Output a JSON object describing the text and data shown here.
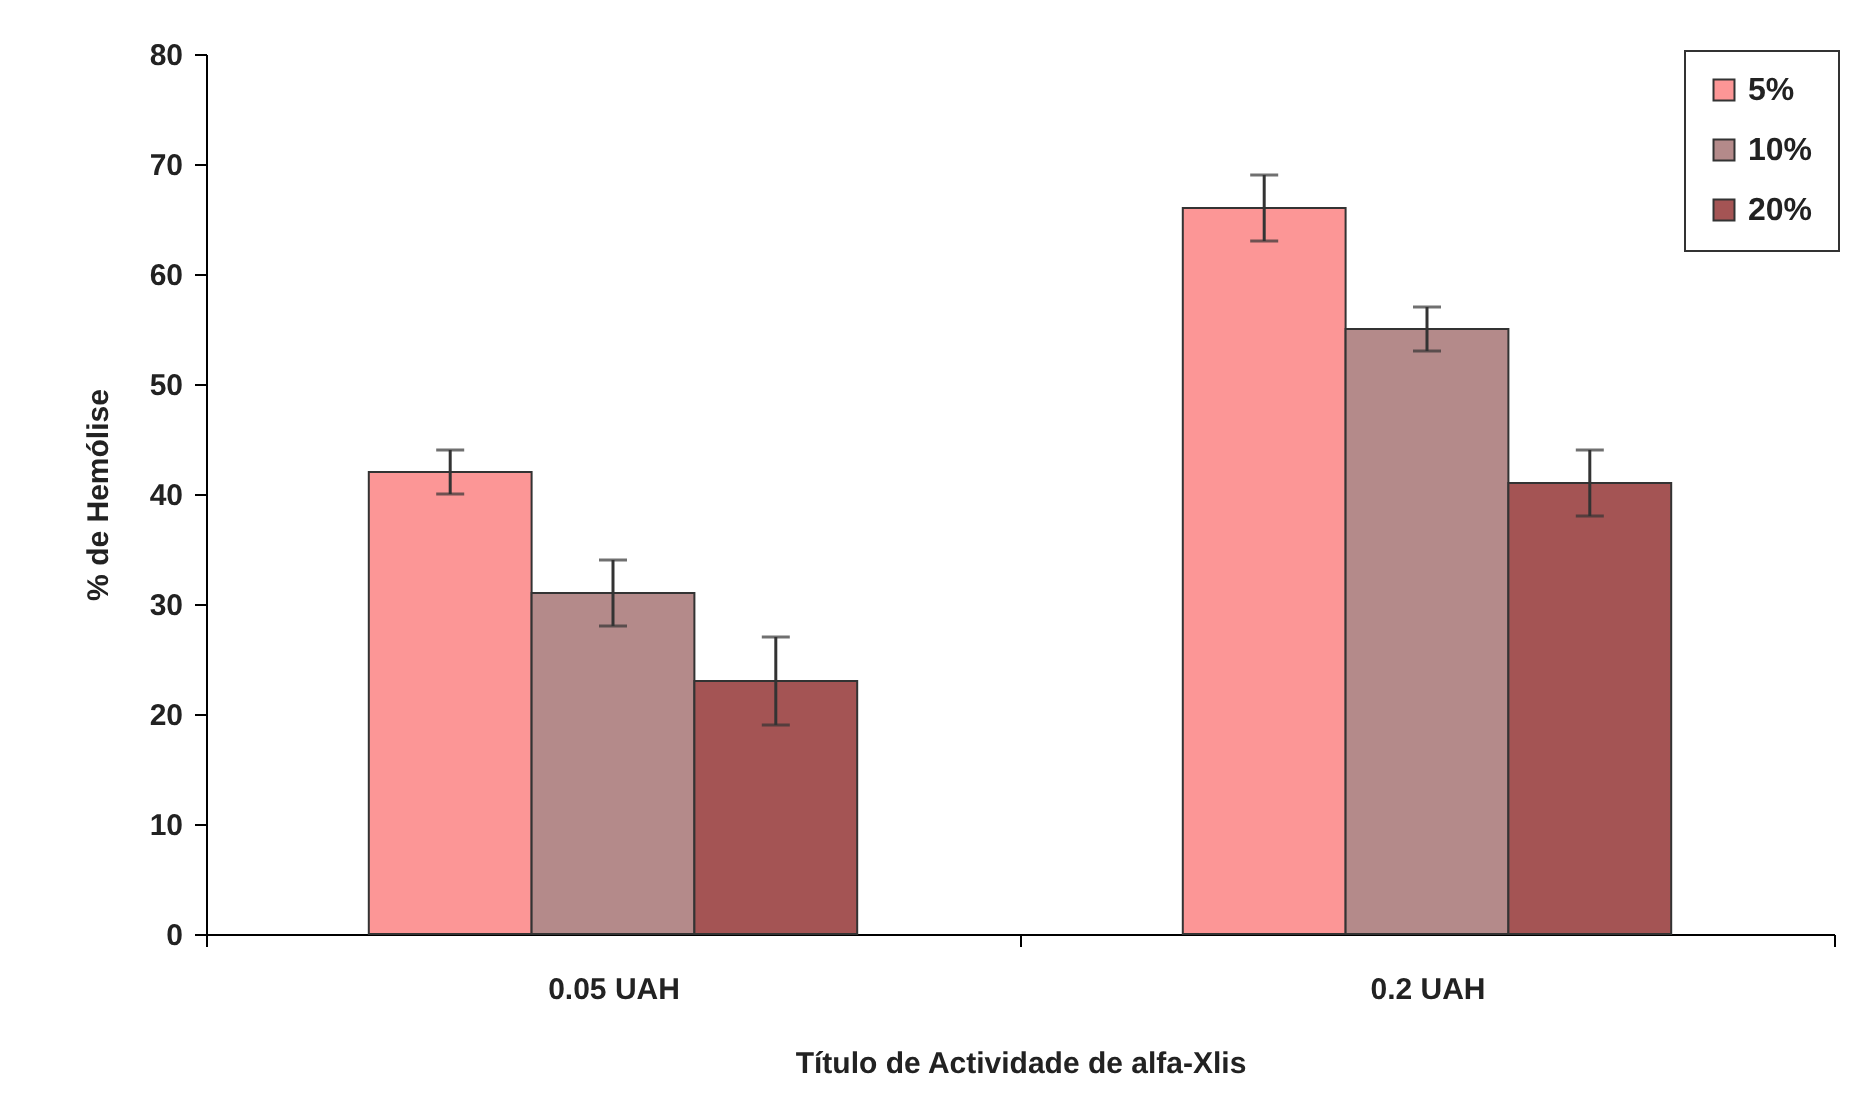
{
  "chart_data": {
    "type": "bar",
    "xlabel": "Título de Actividade de alfa-Xlis",
    "ylabel": "% de Hemólise",
    "categories": [
      "0.05 UAH",
      "0.2 UAH"
    ],
    "series": [
      {
        "name": "5%",
        "color": "#fc9696",
        "values": [
          42,
          66
        ],
        "errors": [
          [
            40,
            44
          ],
          [
            63,
            69
          ]
        ]
      },
      {
        "name": "10%",
        "color": "#b48a8a",
        "values": [
          31,
          55
        ],
        "errors": [
          [
            28,
            34
          ],
          [
            53,
            57
          ]
        ]
      },
      {
        "name": "20%",
        "color": "#a45454",
        "values": [
          23,
          41
        ],
        "errors": [
          [
            19,
            27
          ],
          [
            38,
            44
          ]
        ]
      }
    ],
    "ylim": [
      0,
      80
    ],
    "yticks": [
      0,
      10,
      20,
      30,
      40,
      50,
      60,
      70,
      80
    ],
    "grid": false,
    "legend": "top right"
  }
}
